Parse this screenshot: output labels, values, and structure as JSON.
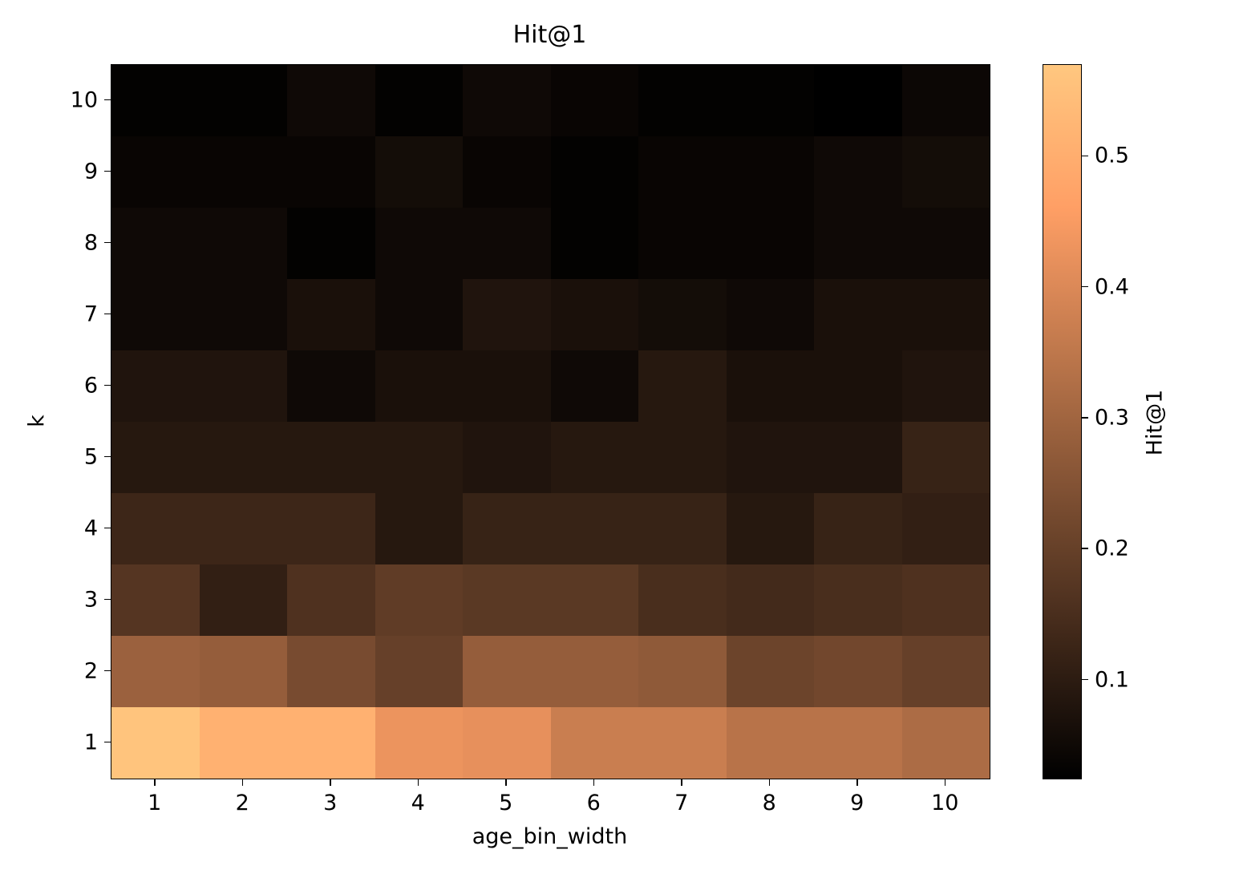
{
  "figure": {
    "background": "#ffffff"
  },
  "chart_data": {
    "type": "heatmap",
    "title": "Hit@1",
    "xlabel": "age_bin_width",
    "ylabel": "k",
    "x_ticks": [
      "1",
      "2",
      "3",
      "4",
      "5",
      "6",
      "7",
      "8",
      "9",
      "10"
    ],
    "y_ticks": [
      "1",
      "2",
      "3",
      "4",
      "5",
      "6",
      "7",
      "8",
      "9",
      "10"
    ],
    "colormap": "copper",
    "vmin": 0.025,
    "vmax": 0.57,
    "grid": false,
    "colorbar": {
      "label": "Hit@1",
      "ticks": [
        "0.1",
        "0.2",
        "0.3",
        "0.4",
        "0.5"
      ],
      "tick_values": [
        0.1,
        0.2,
        0.3,
        0.4,
        0.5
      ]
    },
    "rows_k1_to_k10": [
      {
        "k": 1,
        "values": [
          0.56,
          0.51,
          0.51,
          0.43,
          0.42,
          0.37,
          0.37,
          0.34,
          0.34,
          0.32
        ]
      },
      {
        "k": 2,
        "values": [
          0.29,
          0.28,
          0.23,
          0.2,
          0.28,
          0.28,
          0.27,
          0.21,
          0.22,
          0.2
        ]
      },
      {
        "k": 3,
        "values": [
          0.17,
          0.11,
          0.16,
          0.19,
          0.18,
          0.18,
          0.15,
          0.14,
          0.15,
          0.16
        ]
      },
      {
        "k": 4,
        "values": [
          0.13,
          0.13,
          0.13,
          0.09,
          0.12,
          0.12,
          0.12,
          0.09,
          0.12,
          0.11
        ]
      },
      {
        "k": 5,
        "values": [
          0.09,
          0.09,
          0.09,
          0.09,
          0.08,
          0.09,
          0.09,
          0.08,
          0.08,
          0.12
        ]
      },
      {
        "k": 6,
        "values": [
          0.08,
          0.08,
          0.05,
          0.07,
          0.07,
          0.05,
          0.09,
          0.07,
          0.07,
          0.08
        ]
      },
      {
        "k": 7,
        "values": [
          0.05,
          0.05,
          0.07,
          0.05,
          0.08,
          0.07,
          0.06,
          0.05,
          0.07,
          0.07
        ]
      },
      {
        "k": 8,
        "values": [
          0.05,
          0.05,
          0.03,
          0.05,
          0.05,
          0.03,
          0.04,
          0.04,
          0.05,
          0.05
        ]
      },
      {
        "k": 9,
        "values": [
          0.04,
          0.04,
          0.04,
          0.06,
          0.04,
          0.03,
          0.04,
          0.04,
          0.05,
          0.06
        ]
      },
      {
        "k": 10,
        "values": [
          0.03,
          0.03,
          0.05,
          0.03,
          0.05,
          0.04,
          0.03,
          0.03,
          0.025,
          0.045
        ]
      }
    ]
  }
}
